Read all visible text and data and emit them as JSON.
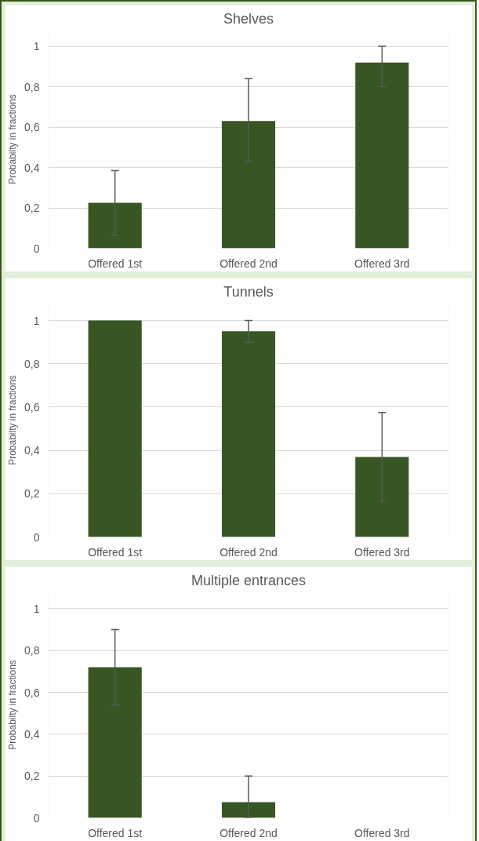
{
  "chart_data": [
    {
      "type": "bar",
      "title": "Shelves",
      "ylabel": "Probabilty in fractions",
      "categories": [
        "Offered 1st",
        "Offered 2nd",
        "Offered 3rd"
      ],
      "values": [
        0.225,
        0.63,
        0.92
      ],
      "errors": [
        [
          0.065,
          0.385
        ],
        [
          0.43,
          0.84
        ],
        [
          0.8,
          1.0
        ]
      ],
      "color": "#375623",
      "ylim": [
        0,
        1
      ],
      "yticks": [
        0,
        {
          "value": 0.2,
          "label": "0,2"
        },
        {
          "value": 0.4,
          "label": "0,4"
        },
        {
          "value": 0.6,
          "label": "0,6"
        },
        {
          "value": 0.8,
          "label": "0,8"
        },
        1
      ],
      "grid": "y"
    },
    {
      "type": "bar",
      "title": "Tunnels",
      "ylabel": "Probabilty in fractions",
      "categories": [
        "Offered 1st",
        "Offered 2nd",
        "Offered 3rd"
      ],
      "values": [
        1.0,
        0.95,
        0.37
      ],
      "errors": [
        null,
        [
          0.9,
          1.0
        ],
        [
          0.165,
          0.575
        ]
      ],
      "color": "#375623",
      "ylim": [
        0,
        1
      ],
      "yticks": [
        0,
        {
          "value": 0.2,
          "label": "0,2"
        },
        {
          "value": 0.4,
          "label": "0,4"
        },
        {
          "value": 0.6,
          "label": "0,6"
        },
        {
          "value": 0.8,
          "label": "0,8"
        },
        1
      ],
      "grid": "y"
    },
    {
      "type": "bar",
      "title": "Multiple entrances",
      "ylabel": "Probabilty in fractions",
      "categories": [
        "Offered 1st",
        "Offered 2nd",
        "Offered 3rd"
      ],
      "values": [
        0.72,
        0.075,
        0
      ],
      "errors": [
        [
          0.54,
          0.9
        ],
        [
          0,
          0.2
        ],
        null
      ],
      "color": "#375623",
      "ylim": [
        0,
        1
      ],
      "yticks": [
        0,
        {
          "value": 0.2,
          "label": "0,2"
        },
        {
          "value": 0.4,
          "label": "0,4"
        },
        {
          "value": 0.6,
          "label": "0,6"
        },
        {
          "value": 0.8,
          "label": "0,8"
        },
        1
      ],
      "grid": "y"
    }
  ]
}
